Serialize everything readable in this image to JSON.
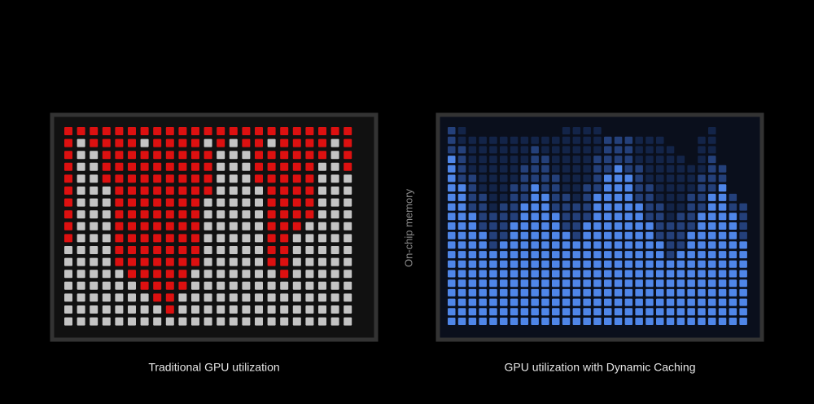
{
  "side_label": "On-chip memory",
  "panels": [
    {
      "caption": "Traditional GPU utilization"
    },
    {
      "caption": "GPU utilization with Dynamic Caching"
    }
  ]
}
